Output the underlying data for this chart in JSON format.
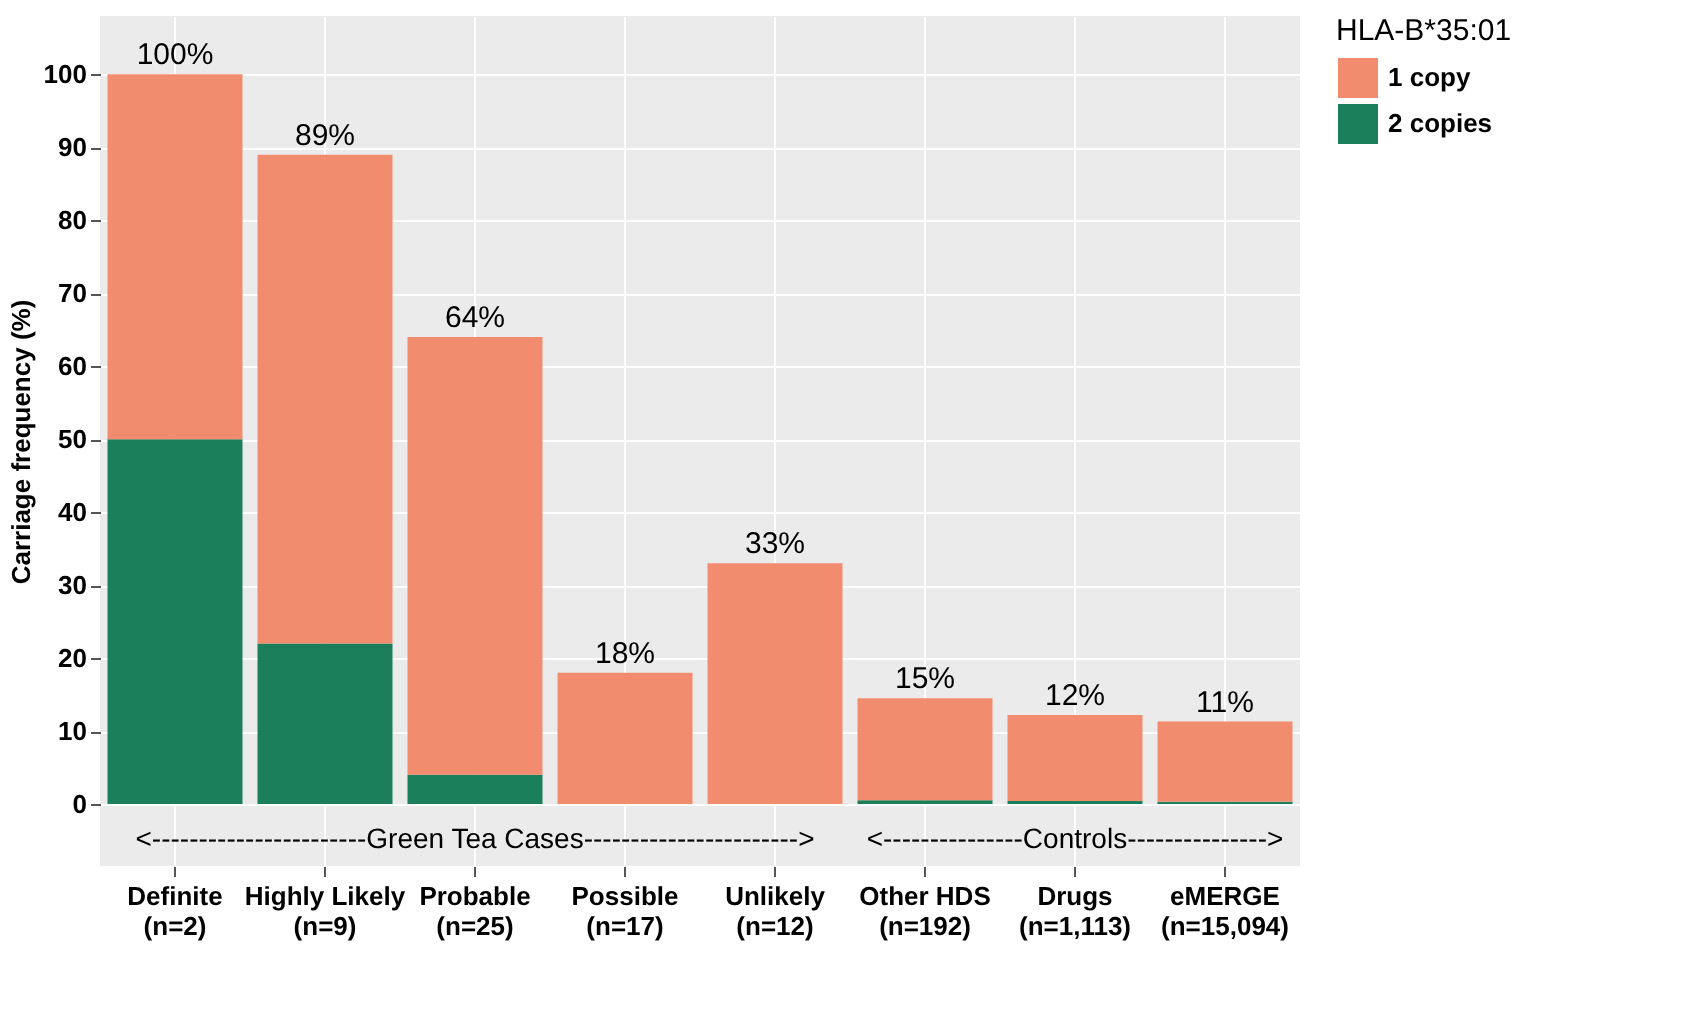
{
  "chart_data": {
    "type": "bar",
    "stacked": true,
    "ylabel": "Carriage frequency (%)",
    "legend_title": "HLA-B*35:01",
    "legend": "right",
    "grid": true,
    "categories": [
      "Definite\n(n=2)",
      "Highly Likely\n(n=9)",
      "Probable\n(n=25)",
      "Possible\n(n=17)",
      "Unlikely\n(n=12)",
      "Other HDS\n(n=192)",
      "Drugs\n(n=1,113)",
      "eMERGE\n(n=15,094)"
    ],
    "series": [
      {
        "name": "2 copies",
        "color": "#1b7f5b",
        "values": [
          50,
          22,
          4,
          0,
          0,
          0.5,
          0.4,
          0.3
        ]
      },
      {
        "name": "1 copy",
        "color": "#f28c6e",
        "values": [
          50,
          67,
          60,
          18,
          33,
          14,
          11.8,
          11
        ]
      }
    ],
    "totals": [
      "100%",
      "89%",
      "64%",
      "18%",
      "33%",
      "15%",
      "12%",
      "11%"
    ],
    "ylim": [
      -8.5,
      108
    ],
    "yticks": [
      0,
      10,
      20,
      30,
      40,
      50,
      60,
      70,
      80,
      90,
      100
    ],
    "annotations": [
      "<-----------------------Green Tea Cases----------------------->",
      "<---------------Controls--------------->"
    ]
  }
}
